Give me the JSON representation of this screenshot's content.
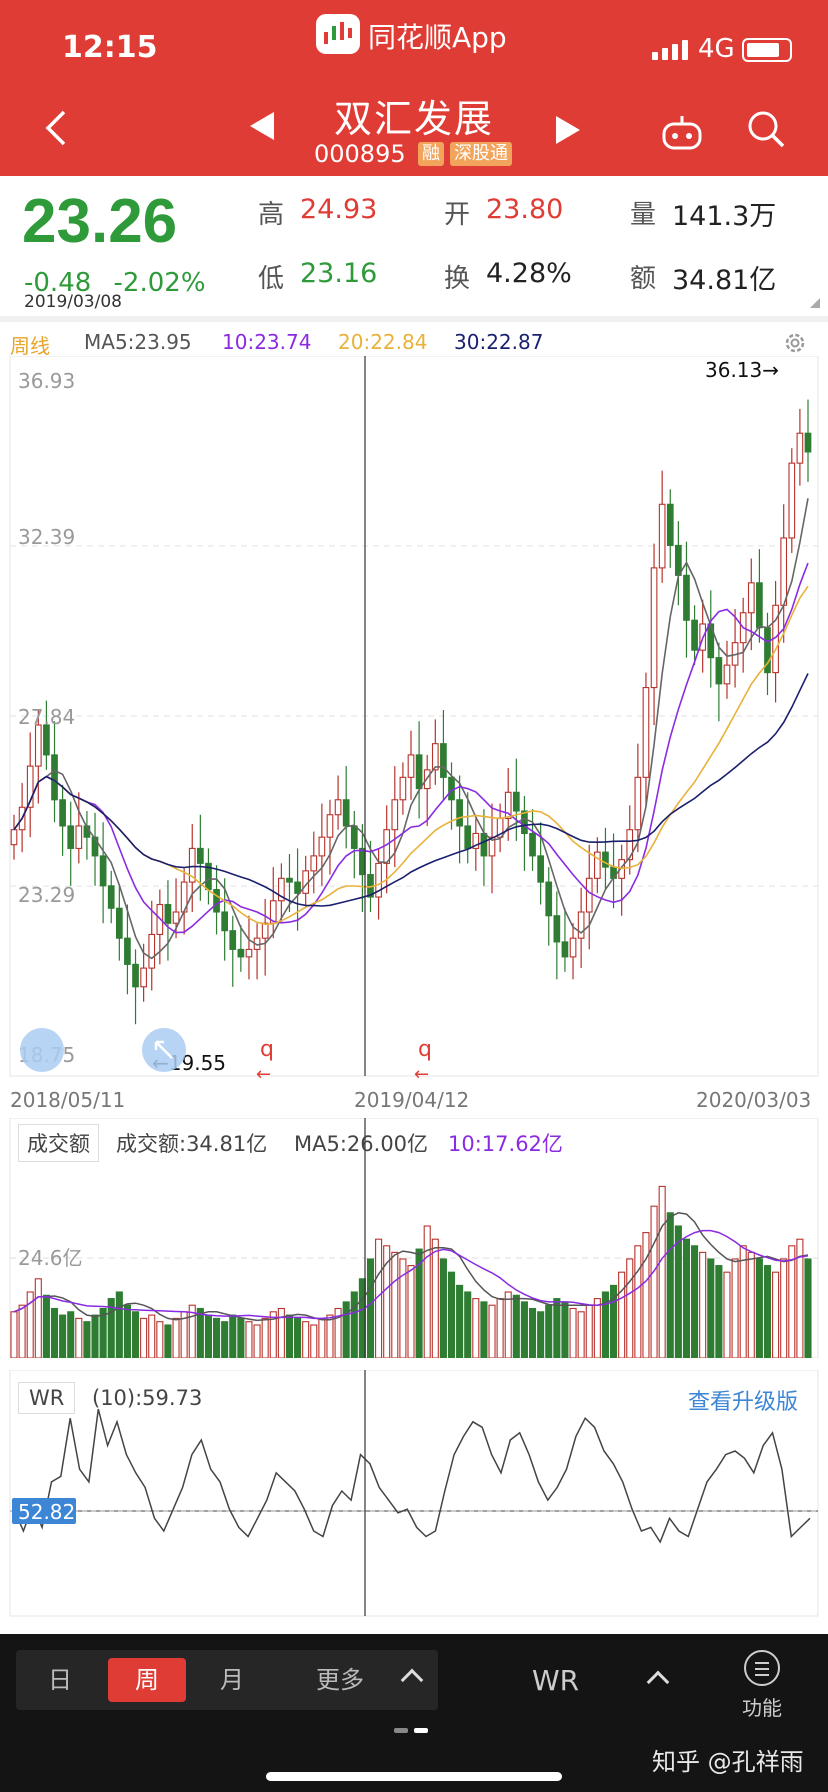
{
  "status_bar": {
    "time": "12:15",
    "app_name": "同花顺App",
    "network": "4G",
    "battery_level": 0.8
  },
  "header": {
    "stock_name": "双汇发展",
    "stock_code": "000895",
    "tags": [
      "融",
      "深股通"
    ],
    "icons": [
      "back-icon",
      "prev-stock-icon",
      "next-stock-icon",
      "robot-icon",
      "search-icon"
    ]
  },
  "quote": {
    "price": "23.26",
    "change": "-0.48",
    "change_pct": "-2.02%",
    "date": "2019/03/08",
    "high_label": "高",
    "high": "24.93",
    "open_label": "开",
    "open": "23.80",
    "volume_label": "量",
    "volume": "141.3万",
    "low_label": "低",
    "low": "23.16",
    "turnover_label": "换",
    "turnover": "4.28%",
    "amount_label": "额",
    "amount": "34.81亿"
  },
  "ma_legend": {
    "period": "周线",
    "ma5": "MA5:23.95",
    "ma10": "10:23.74",
    "ma20": "20:22.84",
    "ma30": "30:22.87"
  },
  "colors": {
    "up": "#b8322c",
    "down": "#2e7d32",
    "ma5": "#666666",
    "ma10": "#8a2be2",
    "ma20": "#e8b23a",
    "ma30": "#1a1f6e",
    "header": "#e03c36"
  },
  "chart_data": [
    {
      "type": "candlestick",
      "title": "",
      "y_ticks": [
        "36.93",
        "32.39",
        "27.84",
        "23.29",
        "18.75"
      ],
      "ylim": [
        18.75,
        36.93
      ],
      "x_labels": [
        "2018/05/11",
        "2019/04/12",
        "2020/03/03"
      ],
      "max_annotation": "36.13→",
      "min_annotation": "←19.55",
      "max_value": 36.13,
      "min_value": 19.55,
      "crosshair_date": "2019/03/08",
      "grid": true,
      "closes": [
        24.8,
        25.4,
        26.5,
        27.6,
        26.8,
        25.6,
        24.9,
        24.3,
        24.9,
        24.6,
        24.1,
        23.3,
        22.7,
        21.9,
        21.2,
        20.6,
        21.1,
        22.0,
        22.8,
        22.3,
        22.6,
        23.4,
        24.3,
        23.9,
        23.2,
        22.6,
        22.1,
        21.6,
        21.4,
        21.6,
        21.9,
        22.3,
        22.9,
        23.5,
        23.4,
        23.1,
        23.7,
        24.1,
        24.6,
        25.2,
        25.6,
        24.9,
        24.3,
        23.6,
        23.0,
        23.9,
        24.8,
        25.6,
        26.2,
        26.8,
        25.9,
        26.4,
        27.1,
        26.2,
        25.6,
        24.9,
        24.3,
        24.7,
        24.1,
        24.6,
        25.1,
        25.8,
        25.3,
        24.7,
        24.1,
        23.4,
        22.5,
        21.8,
        21.4,
        21.9,
        22.6,
        23.5,
        24.2,
        23.8,
        23.5,
        24.0,
        24.8,
        26.2,
        28.6,
        31.8,
        33.5,
        32.4,
        31.6,
        30.4,
        29.6,
        30.3,
        29.4,
        28.7,
        29.2,
        29.8,
        30.6,
        31.4,
        30.2,
        29.0,
        30.8,
        32.6,
        34.6,
        35.4,
        34.9
      ],
      "ma5_last": 23.95,
      "ma10_last": 23.74,
      "ma20_last": 22.84,
      "ma30_last": 22.87
    },
    {
      "type": "bar",
      "title": "成交额",
      "legend": [
        "成交额:34.81亿",
        "MA5:26.00亿",
        "10:17.62亿"
      ],
      "y_tick": "24.6亿",
      "value_unit": "亿",
      "values": [
        14,
        16,
        20,
        24,
        19,
        15,
        13,
        14,
        12,
        11,
        13,
        15,
        18,
        20,
        16,
        14,
        12,
        13,
        11,
        10,
        12,
        14,
        16,
        15,
        13,
        12,
        11,
        13,
        12,
        11,
        10,
        12,
        14,
        15,
        13,
        12,
        11,
        10,
        12,
        13,
        15,
        17,
        20,
        24,
        30,
        36,
        34,
        32,
        30,
        28,
        33,
        40,
        36,
        30,
        26,
        22,
        20,
        18,
        17,
        16,
        18,
        20,
        19,
        17,
        15,
        14,
        16,
        18,
        17,
        15,
        14,
        16,
        18,
        20,
        22,
        26,
        30,
        34,
        38,
        46,
        52,
        44,
        40,
        36,
        34,
        32,
        30,
        28,
        26,
        30,
        34,
        32,
        30,
        28,
        26,
        30,
        34,
        36,
        30
      ]
    },
    {
      "type": "line",
      "title": "WR",
      "legend": [
        "(10):59.73"
      ],
      "marker_value": "52.82",
      "ylim": [
        0,
        100
      ],
      "values": [
        40,
        28,
        42,
        30,
        55,
        58,
        90,
        62,
        55,
        95,
        75,
        88,
        70,
        60,
        52,
        35,
        28,
        40,
        52,
        70,
        78,
        62,
        55,
        40,
        30,
        25,
        35,
        45,
        60,
        55,
        50,
        40,
        28,
        25,
        42,
        50,
        45,
        70,
        65,
        52,
        45,
        38,
        40,
        30,
        25,
        28,
        50,
        70,
        80,
        88,
        85,
        70,
        60,
        78,
        82,
        70,
        55,
        45,
        52,
        62,
        80,
        90,
        85,
        72,
        65,
        55,
        40,
        28,
        30,
        22,
        35,
        28,
        25,
        40,
        55,
        62,
        70,
        72,
        68,
        60,
        75,
        82,
        62,
        25,
        30,
        35
      ]
    }
  ],
  "volume_legend": {
    "box": "成交额",
    "amount": "成交额:34.81亿",
    "ma5": "MA5:26.00亿",
    "ma10": "10:17.62亿",
    "y_tick": "24.6亿"
  },
  "wr_legend": {
    "box": "WR",
    "value": "(10):59.73",
    "marker": "52.82",
    "upgrade": "查看升级版"
  },
  "date_axis": {
    "start": "2018/05/11",
    "mid": "2019/04/12",
    "end": "2020/03/03"
  },
  "bottom_bar": {
    "day": "日",
    "week": "周",
    "month": "月",
    "more": "更多",
    "indicator": "WR",
    "func": "功能",
    "watermark": "知乎 @孔祥雨"
  }
}
